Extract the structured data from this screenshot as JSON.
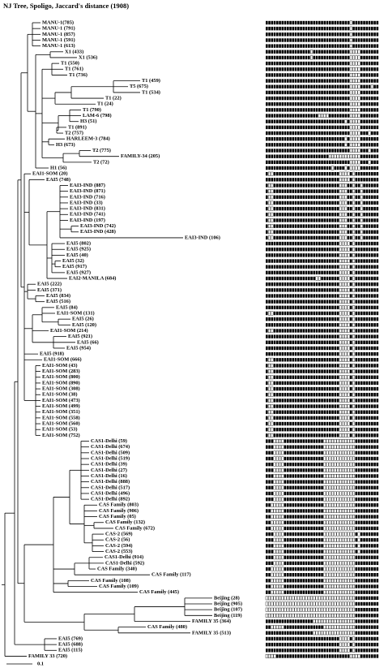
{
  "title": "NJ Tree, Spoligo, Jaccard's distance (1908)",
  "scale_label": "0.1",
  "leaves": [
    {
      "label": "MANU-1(785)",
      "spoligotype": "1111111111111111111111111111111101111111111"
    },
    {
      "label": "MANU-1 (791)",
      "spoligotype": "1111111111111111111111111111111101111111111"
    },
    {
      "label": "MANU-1 (857)",
      "spoligotype": "1111111111111111111111111111111101111111111"
    },
    {
      "label": "MANU-1 (591)",
      "spoligotype": "1111111111111111111111111111111101111111111"
    },
    {
      "label": "MANU-1 (613)",
      "spoligotype": "1111111111111111111111111111111101111111111"
    },
    {
      "label": "X1 (433)",
      "spoligotype": "1111111111111111101111111111111100001111111"
    },
    {
      "label": "X1 (536)",
      "spoligotype": "1111111111111111101111111111111100001111111"
    },
    {
      "label": "T1 (550)",
      "spoligotype": "1111111111111111111111111111111100001111111"
    },
    {
      "label": "T1 (761)",
      "spoligotype": "1111111111111111111111111111111100001111111"
    },
    {
      "label": "T1 (736)",
      "spoligotype": "1111111111111111111111111111111100001111111"
    },
    {
      "label": "T1 (459)",
      "spoligotype": "1111111111111111111111111111111100001111111"
    },
    {
      "label": "T5 (675)",
      "spoligotype": "1111111111111111111111111111111100001111011"
    },
    {
      "label": "T1 (534)",
      "spoligotype": "1111111111111111111111111111111100001111111"
    },
    {
      "label": "T1 (22)",
      "spoligotype": "1111111111111111111111111111111100001111111"
    },
    {
      "label": "T1 (24)",
      "spoligotype": "1111111111111111111111111111111100001111111"
    },
    {
      "label": "T1 (790)",
      "spoligotype": "1111111111111111111111111111111100001111111"
    },
    {
      "label": "LAM-6 (798)",
      "spoligotype": "1111111111111111111100001111111100001111111"
    },
    {
      "label": "H3 (51)",
      "spoligotype": "1111111111111111111111111111110100001111111"
    },
    {
      "label": "T1 (891)",
      "spoligotype": "1111111111111111111111111111111100001111111"
    },
    {
      "label": "T2 (757)",
      "spoligotype": "1111111111111111111111111111111100001110111"
    },
    {
      "label": "HARLEEM-3 (784)",
      "spoligotype": "1111111111111111111111111111110100001111111"
    },
    {
      "label": "H3 (673)",
      "spoligotype": "1111111111111111111111111111110100001111111"
    },
    {
      "label": "T2 (775)",
      "spoligotype": "1111111111111111111111111111111100001110111"
    },
    {
      "label": "FAMILY-34 (205)",
      "spoligotype": "1111111111111111111111110000000000001111111"
    },
    {
      "label": "T2 (72)",
      "spoligotype": "1111111111111111111111111111111100001110111"
    },
    {
      "label": "H1 (56)",
      "spoligotype": "1111111111111111111111111011110100001111111"
    },
    {
      "label": "EAI1-SOM (20)",
      "spoligotype": "1001111111111111111111111111000010111111111"
    },
    {
      "label": "EAI5 (748)",
      "spoligotype": "1111111111111111111111111111000010111111111"
    },
    {
      "label": "EAI3-IND (887)",
      "spoligotype": "1001111111111111111111111111000110110111111"
    },
    {
      "label": "EAI3-IND (871)",
      "spoligotype": "1001111111111111111111111111000110110111111"
    },
    {
      "label": "EAI3-IND (716)",
      "spoligotype": "1001111111111111111111111111000110110111111"
    },
    {
      "label": "EAI3-IND (33)",
      "spoligotype": "1001111111111111111111111111000110110111111"
    },
    {
      "label": "EAI3-IND (831)",
      "spoligotype": "1001111111111111111111111111000110110111111"
    },
    {
      "label": "EAI3-IND (741)",
      "spoligotype": "1001111111111111111111111111000110110111111"
    },
    {
      "label": "EAI3-IND (197)",
      "spoligotype": "1001111111111111111111111111000110110111111"
    },
    {
      "label": "EAI3-IND (742)",
      "spoligotype": "1001111111111111111111111111000110110111111"
    },
    {
      "label": "EAI3-IND (428)",
      "spoligotype": "1001111111111111111111111111000110110111111"
    },
    {
      "label": "EAI3-IND (106)",
      "spoligotype": "1001111111111111111111111111000110110111111"
    },
    {
      "label": "EAI5 (802)",
      "spoligotype": "1111111111111111111111111111000010111111111"
    },
    {
      "label": "EAI5 (925)",
      "spoligotype": "1111111111111111111111111111000010111111111"
    },
    {
      "label": "EAI5 (40)",
      "spoligotype": "1111111111111111111111111111000010111111111"
    },
    {
      "label": "EAI5 (32)",
      "spoligotype": "1111111111111111111111111111000010111111111"
    },
    {
      "label": "EAI5 (917)",
      "spoligotype": "1111111111111111111111111111000010111111111"
    },
    {
      "label": "EAI5 (927)",
      "spoligotype": "1111111111111111111111111111000010111111111"
    },
    {
      "label": "EAI2-MANILA (684)",
      "spoligotype": "1111111111111111111001111111000010111111111"
    },
    {
      "label": "EAI5 (222)",
      "spoligotype": "1111111111111111111111111111000010111111111"
    },
    {
      "label": "EAI5 (371)",
      "spoligotype": "1111111111111111111111111111000010111111111"
    },
    {
      "label": "EAI5 (834)",
      "spoligotype": "1111111111111111111111111111000010111111111"
    },
    {
      "label": "EAI5 (516)",
      "spoligotype": "1111111111111111111111111111000010111111111"
    },
    {
      "label": "EAI5 (84)",
      "spoligotype": "1111111111111111111111111111000010111111111"
    },
    {
      "label": "EAI1-SOM (131)",
      "spoligotype": "1001111111111111111111111111000010111111111"
    },
    {
      "label": "EAI5 (26)",
      "spoligotype": "1111111111111111111111111111000010111111111"
    },
    {
      "label": "EAI5 (120)",
      "spoligotype": "1111111111111111111111111111000010111111111"
    },
    {
      "label": "EAI1-SOM (214)",
      "spoligotype": "1001111111111111111111111111000010111111111"
    },
    {
      "label": "EAI5 (921)",
      "spoligotype": "1111111111111111111111111111000010111111111"
    },
    {
      "label": "EAI5 (66)",
      "spoligotype": "1111111111111111111111111111000010111111111"
    },
    {
      "label": "EAI5 (954)",
      "spoligotype": "1111111111111111111111111111000010111111111"
    },
    {
      "label": "EAI5 (918)",
      "spoligotype": "1111111111111111111111111111000010111111111"
    },
    {
      "label": "EAI1-SOM (666)",
      "spoligotype": "1001111111111111111111111111000010111111111"
    },
    {
      "label": "EAI1-SOM (43)",
      "spoligotype": "1001111111111111111111111111000010111111111"
    },
    {
      "label": "EAI1-SOM (283)",
      "spoligotype": "1001111111111111111111111111000010111111111"
    },
    {
      "label": "EAI1-SOM (800)",
      "spoligotype": "1001111111111111111111111111000010111111111"
    },
    {
      "label": "EAI1-SOM (890)",
      "spoligotype": "1001111111111111111111111111000010111111111"
    },
    {
      "label": "EAI1-SOM (308)",
      "spoligotype": "1001111111111111111111111111000010111111111"
    },
    {
      "label": "EAI1-SOM (38)",
      "spoligotype": "1001111111111111111111111111000010111111111"
    },
    {
      "label": "EAI1-SOM (473)",
      "spoligotype": "1001111111111111111111111111000010111111111"
    },
    {
      "label": "EAI1-SOM (499)",
      "spoligotype": "1001111111111111111111111111000010111111111"
    },
    {
      "label": "EAI1-SOM (351)",
      "spoligotype": "1001111111111111111111111111000010111111111"
    },
    {
      "label": "EAI1-SOM (558)",
      "spoligotype": "1001111111111111111111111111000010111111111"
    },
    {
      "label": "EAI1-SOM (560)",
      "spoligotype": "1001111111111111111111111111000010111111111"
    },
    {
      "label": "EAI1-SOM (53)",
      "spoligotype": "1001111111111111111111111111000010111111111"
    },
    {
      "label": "EAI1-SOM (752)",
      "spoligotype": "1001111111111111111111111111000010111111111"
    },
    {
      "label": "CAS1-Delhi (59)",
      "spoligotype": "1110000111111111111111000000000000111111111"
    },
    {
      "label": "CAS1-Delhi (674)",
      "spoligotype": "1110000111111111111111000000000000111111111"
    },
    {
      "label": "CAS1-Delhi (509)",
      "spoligotype": "1110000111111111111111000000000000111111111"
    },
    {
      "label": "CAS1-Delhi (519)",
      "spoligotype": "1110000111111111111111000000000000111111111"
    },
    {
      "label": "CAS1-Delhi (39)",
      "spoligotype": "1110000111111111111111000000000000111111111"
    },
    {
      "label": "CAS1-Delhi (27)",
      "spoligotype": "1110000111111111111111000000000000111111111"
    },
    {
      "label": "CAS1-Delhi (16)",
      "spoligotype": "1110000111111111111111000000000000111111111"
    },
    {
      "label": "CAS1-Delhi (888)",
      "spoligotype": "1110000111111111111111000000000000111111111"
    },
    {
      "label": "CAS1-Delhi (517)",
      "spoligotype": "1110000111111111111111000000000000111111111"
    },
    {
      "label": "CAS1-Delhi (496)",
      "spoligotype": "1110000111111111111111000000000000111111111"
    },
    {
      "label": "CAS1-Delhi (892)",
      "spoligotype": "1110000111111111111111000000000000111111111"
    },
    {
      "label": "CAS Family (803)",
      "spoligotype": "1100000111111111111111000000000000111111111"
    },
    {
      "label": "CAS Family (906)",
      "spoligotype": "1100000111111111111111000000000000111111111"
    },
    {
      "label": "CAS Family (05)",
      "spoligotype": "1100000111111111111111000000000000111111111"
    },
    {
      "label": "CAS Family (132)",
      "spoligotype": "1100000111111111111111000000000000111111111"
    },
    {
      "label": "CAS Family (672)",
      "spoligotype": "1100000111111111111111000000000000111111111"
    },
    {
      "label": "CAS-2 (569)",
      "spoligotype": "1110000111111111111111000000000000101111111"
    },
    {
      "label": "CAS-2 (56)",
      "spoligotype": "1110000111111111111111000000000000101111111"
    },
    {
      "label": "CAS-2 (594)",
      "spoligotype": "1110000111111111111111000000000000101111111"
    },
    {
      "label": "CAS-2 (553)",
      "spoligotype": "1110000111111111111111000000000000101111111"
    },
    {
      "label": "CAS1-Delhi (914)",
      "spoligotype": "1110000111111111111111000000000000111111111"
    },
    {
      "label": "CAS1-Delhi (592)",
      "spoligotype": "1110000111111111111111000000000000111111111"
    },
    {
      "label": "CAS Family (340)",
      "spoligotype": "1100000111111111111111000000000000111111111"
    },
    {
      "label": "CAS Family (117)",
      "spoligotype": "1100000111111111111111000000000000111111111"
    },
    {
      "label": "CAS Family (108)",
      "spoligotype": "1100000111111111111111000000000000111111111"
    },
    {
      "label": "CAS Family (109)",
      "spoligotype": "1100000111111111111111000000000000111111111"
    },
    {
      "label": "CAS Family (445)",
      "spoligotype": "1100000111111111111111000000000000111111111"
    },
    {
      "label": "Beijing (28)",
      "spoligotype": "0000000000000000000000000000000000111111111"
    },
    {
      "label": "Beijing (905)",
      "spoligotype": "0000000000000000000000000000000000111111111"
    },
    {
      "label": "Beijing (107)",
      "spoligotype": "0000000000000000000000000000000000111111111"
    },
    {
      "label": "Beijing (119)",
      "spoligotype": "0000000000000000000000000000000000111111111"
    },
    {
      "label": "FAMILY 35 (364)",
      "spoligotype": "1111111111111111110000000000000000111111111"
    },
    {
      "label": "CAS Family (480)",
      "spoligotype": "1100000111111111111111000000000000111111111"
    },
    {
      "label": "FAMILY 35 (513)",
      "spoligotype": "1111111111111111110000000000000000111111111"
    },
    {
      "label": "EAI5 (769)",
      "spoligotype": "1111111111111111111111111111000010111111111"
    },
    {
      "label": "EAI5 (688)",
      "spoligotype": "1111111111111111111111111111000010111111111"
    },
    {
      "label": "EAI5 (115)",
      "spoligotype": "1111111111111111111111111111000010111111111"
    },
    {
      "label": "FAMILY 33 (720)",
      "spoligotype": "0000111111111111111111111111111100001111111"
    }
  ]
}
